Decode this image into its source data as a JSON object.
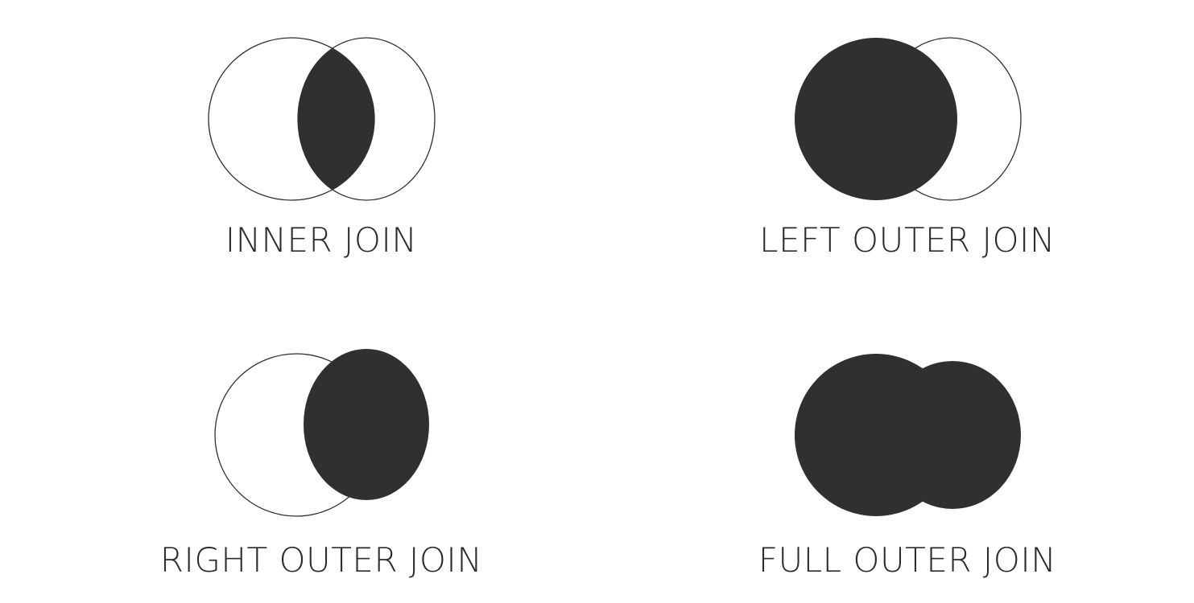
{
  "colors": {
    "fill": "#2f3032",
    "outline": "#2f3032",
    "text": "#2a2b2d",
    "background": "#ffffff"
  },
  "diagrams": {
    "inner_join": {
      "label": "INNER JOIN"
    },
    "left_outer_join": {
      "label": "LEFT OUTER JOIN"
    },
    "right_outer_join": {
      "label": "RIGHT OUTER JOIN"
    },
    "full_outer_join": {
      "label": "FULL OUTER JOIN"
    }
  }
}
